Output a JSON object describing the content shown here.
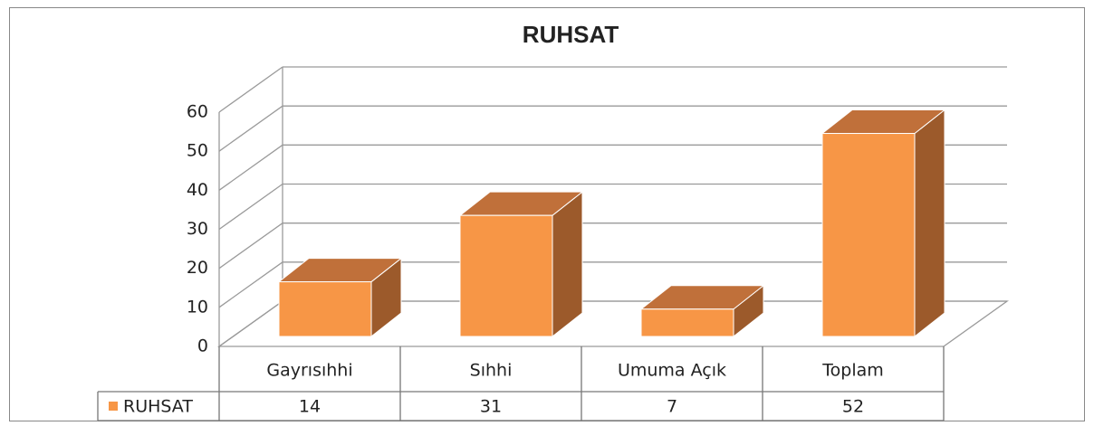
{
  "chart_data": {
    "type": "bar3d",
    "title": "RUHSAT",
    "categories": [
      "Gayrısıhhi",
      "Sıhhi",
      "Umuma Açık",
      "Toplam"
    ],
    "series": [
      {
        "name": "RUHSAT",
        "color": "#f79646",
        "values": [
          14,
          31,
          7,
          52
        ]
      }
    ],
    "ylim": [
      0,
      60
    ],
    "yticks": [
      0,
      10,
      20,
      30,
      40,
      50,
      60
    ],
    "grid": true,
    "data_table": true
  }
}
